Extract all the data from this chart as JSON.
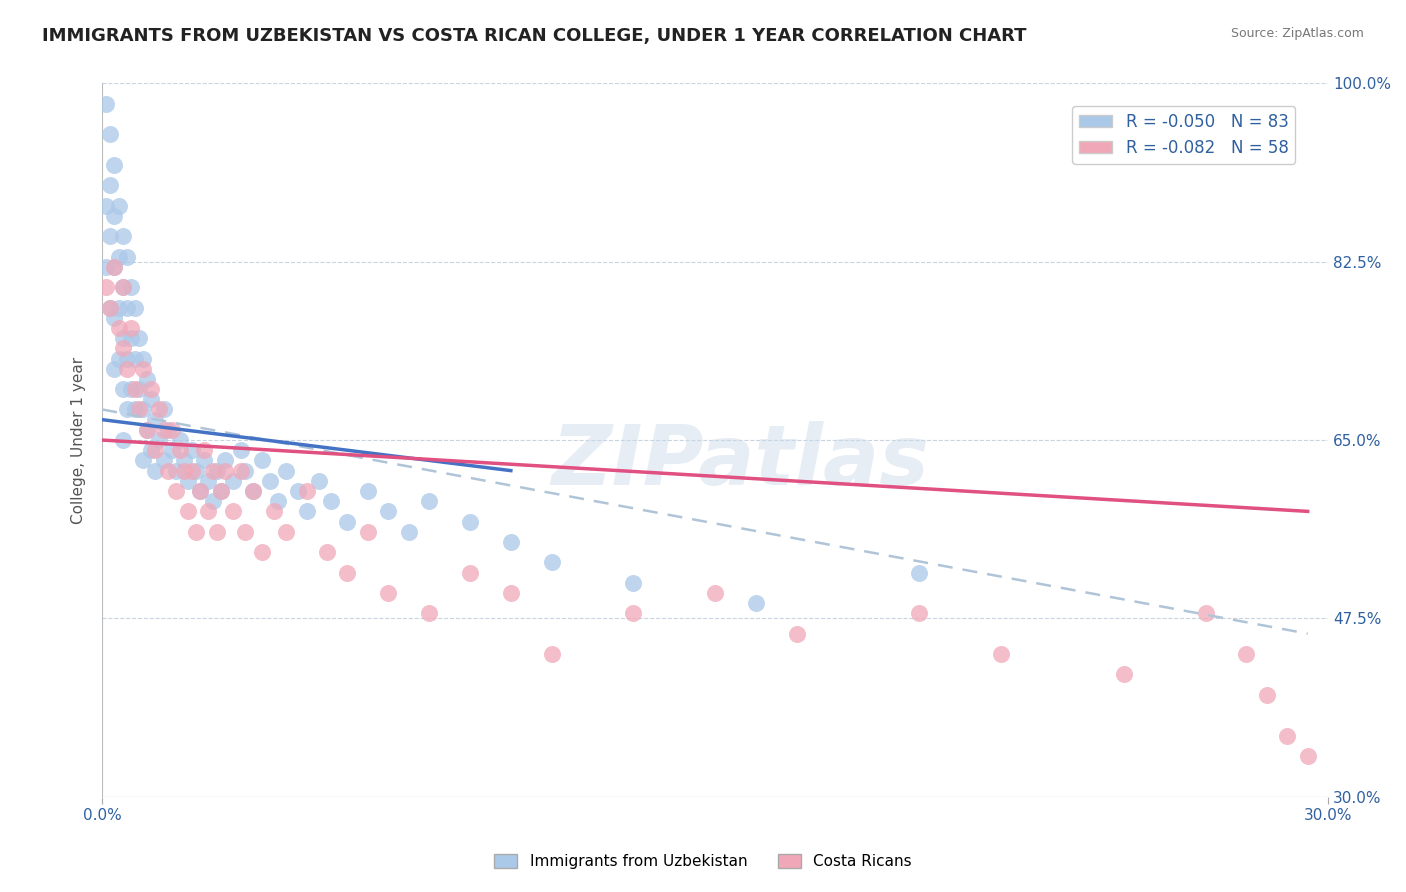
{
  "title": "IMMIGRANTS FROM UZBEKISTAN VS COSTA RICAN COLLEGE, UNDER 1 YEAR CORRELATION CHART",
  "source": "Source: ZipAtlas.com",
  "ylabel": "College, Under 1 year",
  "xlim": [
    0.0,
    0.3
  ],
  "ylim": [
    0.3,
    1.0
  ],
  "xtick_labels": [
    "0.0%",
    "30.0%"
  ],
  "ytick_labels": [
    "30.0%",
    "47.5%",
    "65.0%",
    "82.5%",
    "100.0%"
  ],
  "ytick_values": [
    0.3,
    0.475,
    0.65,
    0.825,
    1.0
  ],
  "blue_R": -0.05,
  "blue_N": 83,
  "pink_R": -0.082,
  "pink_N": 58,
  "blue_color": "#aac8e8",
  "pink_color": "#f0a8b8",
  "blue_line_color": "#4472c4",
  "pink_line_color": "#e05080",
  "dashed_line_color": "#b0c4d8",
  "legend_label_1": "Immigrants from Uzbekistan",
  "legend_label_2": "Costa Ricans",
  "watermark": "ZIPatlas",
  "blue_x": [
    0.001,
    0.001,
    0.001,
    0.002,
    0.002,
    0.002,
    0.002,
    0.003,
    0.003,
    0.003,
    0.003,
    0.003,
    0.004,
    0.004,
    0.004,
    0.004,
    0.005,
    0.005,
    0.005,
    0.005,
    0.005,
    0.006,
    0.006,
    0.006,
    0.006,
    0.007,
    0.007,
    0.007,
    0.008,
    0.008,
    0.008,
    0.009,
    0.009,
    0.01,
    0.01,
    0.01,
    0.011,
    0.011,
    0.012,
    0.012,
    0.013,
    0.013,
    0.014,
    0.015,
    0.015,
    0.016,
    0.017,
    0.018,
    0.019,
    0.02,
    0.021,
    0.022,
    0.023,
    0.024,
    0.025,
    0.026,
    0.027,
    0.028,
    0.029,
    0.03,
    0.032,
    0.034,
    0.035,
    0.037,
    0.039,
    0.041,
    0.043,
    0.045,
    0.048,
    0.05,
    0.053,
    0.056,
    0.06,
    0.065,
    0.07,
    0.075,
    0.08,
    0.09,
    0.1,
    0.11,
    0.13,
    0.16,
    0.2
  ],
  "blue_y": [
    0.98,
    0.88,
    0.82,
    0.95,
    0.9,
    0.85,
    0.78,
    0.92,
    0.87,
    0.82,
    0.77,
    0.72,
    0.88,
    0.83,
    0.78,
    0.73,
    0.85,
    0.8,
    0.75,
    0.7,
    0.65,
    0.83,
    0.78,
    0.73,
    0.68,
    0.8,
    0.75,
    0.7,
    0.78,
    0.73,
    0.68,
    0.75,
    0.7,
    0.73,
    0.68,
    0.63,
    0.71,
    0.66,
    0.69,
    0.64,
    0.67,
    0.62,
    0.65,
    0.68,
    0.63,
    0.66,
    0.64,
    0.62,
    0.65,
    0.63,
    0.61,
    0.64,
    0.62,
    0.6,
    0.63,
    0.61,
    0.59,
    0.62,
    0.6,
    0.63,
    0.61,
    0.64,
    0.62,
    0.6,
    0.63,
    0.61,
    0.59,
    0.62,
    0.6,
    0.58,
    0.61,
    0.59,
    0.57,
    0.6,
    0.58,
    0.56,
    0.59,
    0.57,
    0.55,
    0.53,
    0.51,
    0.49,
    0.52
  ],
  "pink_x": [
    0.001,
    0.002,
    0.003,
    0.004,
    0.005,
    0.005,
    0.006,
    0.007,
    0.008,
    0.009,
    0.01,
    0.011,
    0.012,
    0.013,
    0.014,
    0.015,
    0.016,
    0.017,
    0.018,
    0.019,
    0.02,
    0.021,
    0.022,
    0.023,
    0.024,
    0.025,
    0.026,
    0.027,
    0.028,
    0.029,
    0.03,
    0.032,
    0.034,
    0.035,
    0.037,
    0.039,
    0.042,
    0.045,
    0.05,
    0.055,
    0.06,
    0.065,
    0.07,
    0.08,
    0.09,
    0.1,
    0.11,
    0.13,
    0.15,
    0.17,
    0.2,
    0.22,
    0.25,
    0.27,
    0.28,
    0.285,
    0.29,
    0.295
  ],
  "pink_y": [
    0.8,
    0.78,
    0.82,
    0.76,
    0.74,
    0.8,
    0.72,
    0.76,
    0.7,
    0.68,
    0.72,
    0.66,
    0.7,
    0.64,
    0.68,
    0.66,
    0.62,
    0.66,
    0.6,
    0.64,
    0.62,
    0.58,
    0.62,
    0.56,
    0.6,
    0.64,
    0.58,
    0.62,
    0.56,
    0.6,
    0.62,
    0.58,
    0.62,
    0.56,
    0.6,
    0.54,
    0.58,
    0.56,
    0.6,
    0.54,
    0.52,
    0.56,
    0.5,
    0.48,
    0.52,
    0.5,
    0.44,
    0.48,
    0.5,
    0.46,
    0.48,
    0.44,
    0.42,
    0.48,
    0.44,
    0.4,
    0.36,
    0.34
  ],
  "blue_trend_x0": 0.0,
  "blue_trend_x1": 0.1,
  "blue_trend_y0": 0.67,
  "blue_trend_y1": 0.62,
  "pink_trend_x0": 0.0,
  "pink_trend_x1": 0.295,
  "pink_trend_y0": 0.65,
  "pink_trend_y1": 0.58,
  "dash_trend_x0": 0.0,
  "dash_trend_x1": 0.295,
  "dash_trend_y0": 0.68,
  "dash_trend_y1": 0.46
}
